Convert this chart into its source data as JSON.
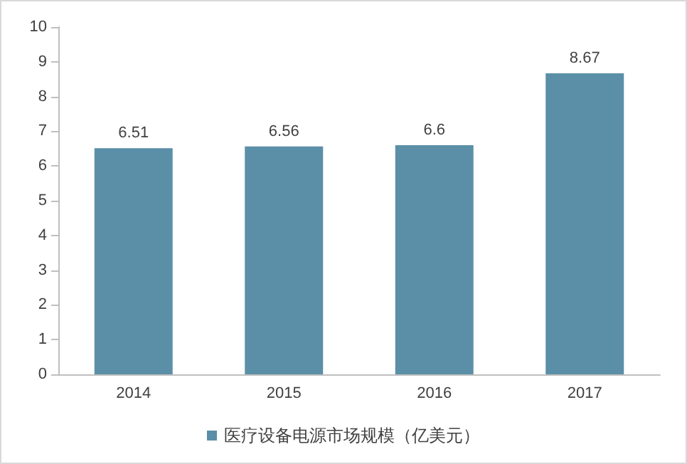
{
  "chart_data": {
    "type": "bar",
    "categories": [
      "2014",
      "2015",
      "2016",
      "2017"
    ],
    "series": [
      {
        "name": "医疗设备电源市场规模（亿美元）",
        "color": "#5b8fa8",
        "values": [
          6.51,
          6.56,
          6.6,
          8.67
        ]
      }
    ],
    "ylim": [
      0,
      10
    ],
    "yticks": [
      0,
      1,
      2,
      3,
      4,
      5,
      6,
      7,
      8,
      9,
      10
    ],
    "grid": false,
    "legend": "bottom",
    "data_labels": true
  }
}
